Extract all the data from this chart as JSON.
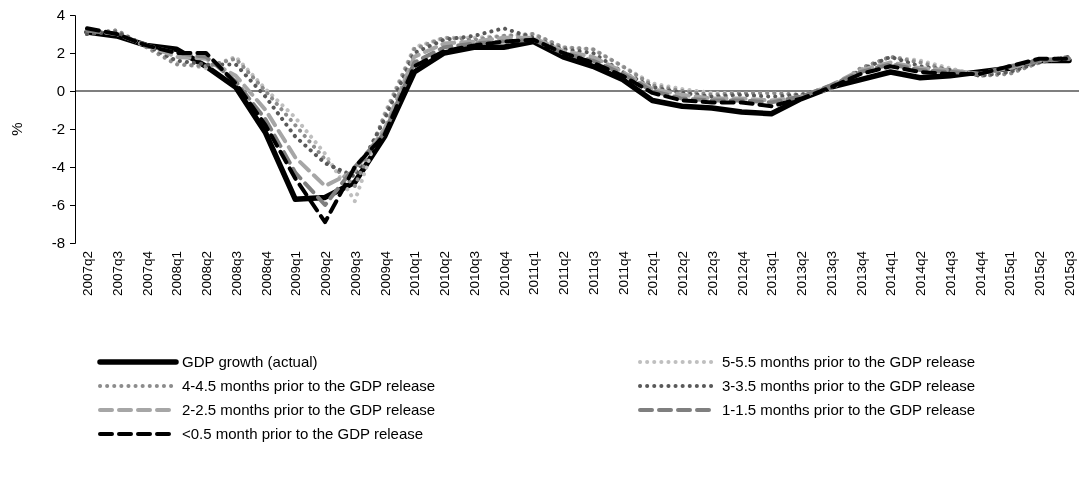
{
  "chart_data": {
    "type": "line",
    "ylabel": "%",
    "ylim": [
      -8,
      4
    ],
    "yticks": [
      -8,
      -6,
      -4,
      -2,
      0,
      2,
      4
    ],
    "grid": false,
    "ref_lines": [
      {
        "axis": "y",
        "value": 0
      }
    ],
    "legend": "bottom",
    "marker": "none",
    "categories": [
      "2007q2",
      "2007q3",
      "2007q4",
      "2008q1",
      "2008q2",
      "2008q3",
      "2008q4",
      "2009q1",
      "2009q2",
      "2009q3",
      "2009q4",
      "2010q1",
      "2010q2",
      "2010q3",
      "2010q4",
      "2011q1",
      "2011q2",
      "2011q3",
      "2011q4",
      "2012q1",
      "2012q2",
      "2012q3",
      "2012q4",
      "2013q1",
      "2013q2",
      "2013q3",
      "2013q4",
      "2014q1",
      "2014q2",
      "2014q3",
      "2014q4",
      "2015q1",
      "2015q2",
      "2015q3"
    ],
    "series": [
      {
        "name": "GDP growth (actual)",
        "color": "#000000",
        "line_style": "solid",
        "values": [
          3.1,
          2.9,
          2.4,
          2.2,
          1.3,
          0.2,
          -2.2,
          -5.7,
          -5.6,
          -4.8,
          -2.4,
          1.0,
          2.0,
          2.3,
          2.3,
          2.6,
          1.8,
          1.3,
          0.6,
          -0.5,
          -0.8,
          -0.9,
          -1.1,
          -1.2,
          -0.4,
          0.2,
          0.6,
          1.0,
          0.7,
          0.8,
          1.0,
          1.2,
          1.6,
          1.6
        ]
      },
      {
        "name": "5-5.5 months prior to the GDP release",
        "color": "#bfbfbf",
        "line_style": "dotted",
        "values": [
          3.0,
          3.2,
          2.3,
          1.5,
          1.2,
          1.8,
          0.1,
          -1.4,
          -3.3,
          -5.8,
          -1.2,
          2.3,
          2.8,
          2.8,
          2.9,
          3.0,
          2.3,
          2.2,
          1.3,
          0.4,
          0.1,
          -0.1,
          -0.1,
          -0.1,
          -0.2,
          0.1,
          1.2,
          1.8,
          1.6,
          1.2,
          0.8,
          0.9,
          1.6,
          1.8
        ]
      },
      {
        "name": "4-4.5 months prior to the GDP release",
        "color": "#8c8c8c",
        "line_style": "dotted",
        "values": [
          3.0,
          3.2,
          2.3,
          1.4,
          1.3,
          1.7,
          0.0,
          -1.8,
          -3.6,
          -5.0,
          -1.3,
          2.2,
          2.8,
          2.7,
          2.9,
          3.0,
          2.3,
          2.2,
          1.3,
          0.3,
          0.0,
          -0.2,
          -0.1,
          -0.1,
          -0.2,
          0.1,
          1.2,
          1.8,
          1.5,
          1.1,
          0.8,
          0.9,
          1.5,
          1.8
        ]
      },
      {
        "name": "3-3.5 months prior to the GDP release",
        "color": "#595959",
        "line_style": "dotted",
        "values": [
          3.0,
          3.1,
          2.4,
          1.6,
          1.4,
          1.4,
          -0.3,
          -2.4,
          -3.8,
          -4.5,
          -1.5,
          2.0,
          2.7,
          2.9,
          3.3,
          2.8,
          2.2,
          2.0,
          1.0,
          0.2,
          -0.1,
          -0.3,
          -0.2,
          -0.3,
          -0.2,
          0.2,
          1.1,
          1.8,
          1.3,
          1.1,
          0.8,
          1.0,
          1.5,
          1.8
        ]
      },
      {
        "name": "2-2.5 months prior to the GDP release",
        "color": "#a6a6a6",
        "line_style": "dashed",
        "values": [
          3.2,
          3.0,
          2.4,
          1.8,
          1.7,
          0.8,
          -1.0,
          -3.5,
          -5.0,
          -4.2,
          -2.0,
          1.8,
          2.5,
          2.6,
          2.8,
          2.8,
          2.1,
          1.8,
          1.0,
          0.1,
          -0.2,
          -0.4,
          -0.4,
          -0.5,
          -0.3,
          0.3,
          1.1,
          1.5,
          1.2,
          1.1,
          0.9,
          1.2,
          1.6,
          1.7
        ]
      },
      {
        "name": "1-1.5 months prior to the GDP release",
        "color": "#7f7f7f",
        "line_style": "dashed",
        "values": [
          3.2,
          3.0,
          2.4,
          2.0,
          1.8,
          0.5,
          -1.5,
          -4.3,
          -6.0,
          -4.0,
          -2.2,
          1.5,
          2.3,
          2.5,
          2.6,
          2.7,
          2.0,
          1.6,
          0.9,
          0.0,
          -0.4,
          -0.5,
          -0.5,
          -0.6,
          -0.3,
          0.3,
          1.0,
          1.4,
          1.1,
          1.0,
          0.9,
          1.3,
          1.6,
          1.7
        ]
      },
      {
        "name": "<0.5 month prior to the GDP release",
        "color": "#000000",
        "line_style": "dashed",
        "values": [
          3.3,
          3.0,
          2.4,
          2.0,
          2.0,
          0.4,
          -1.8,
          -4.6,
          -6.9,
          -4.0,
          -2.3,
          1.3,
          2.1,
          2.4,
          2.6,
          2.7,
          2.0,
          1.5,
          0.8,
          -0.1,
          -0.5,
          -0.6,
          -0.6,
          -0.8,
          -0.4,
          0.2,
          0.9,
          1.3,
          1.0,
          0.9,
          0.9,
          1.3,
          1.7,
          1.7
        ]
      }
    ]
  }
}
